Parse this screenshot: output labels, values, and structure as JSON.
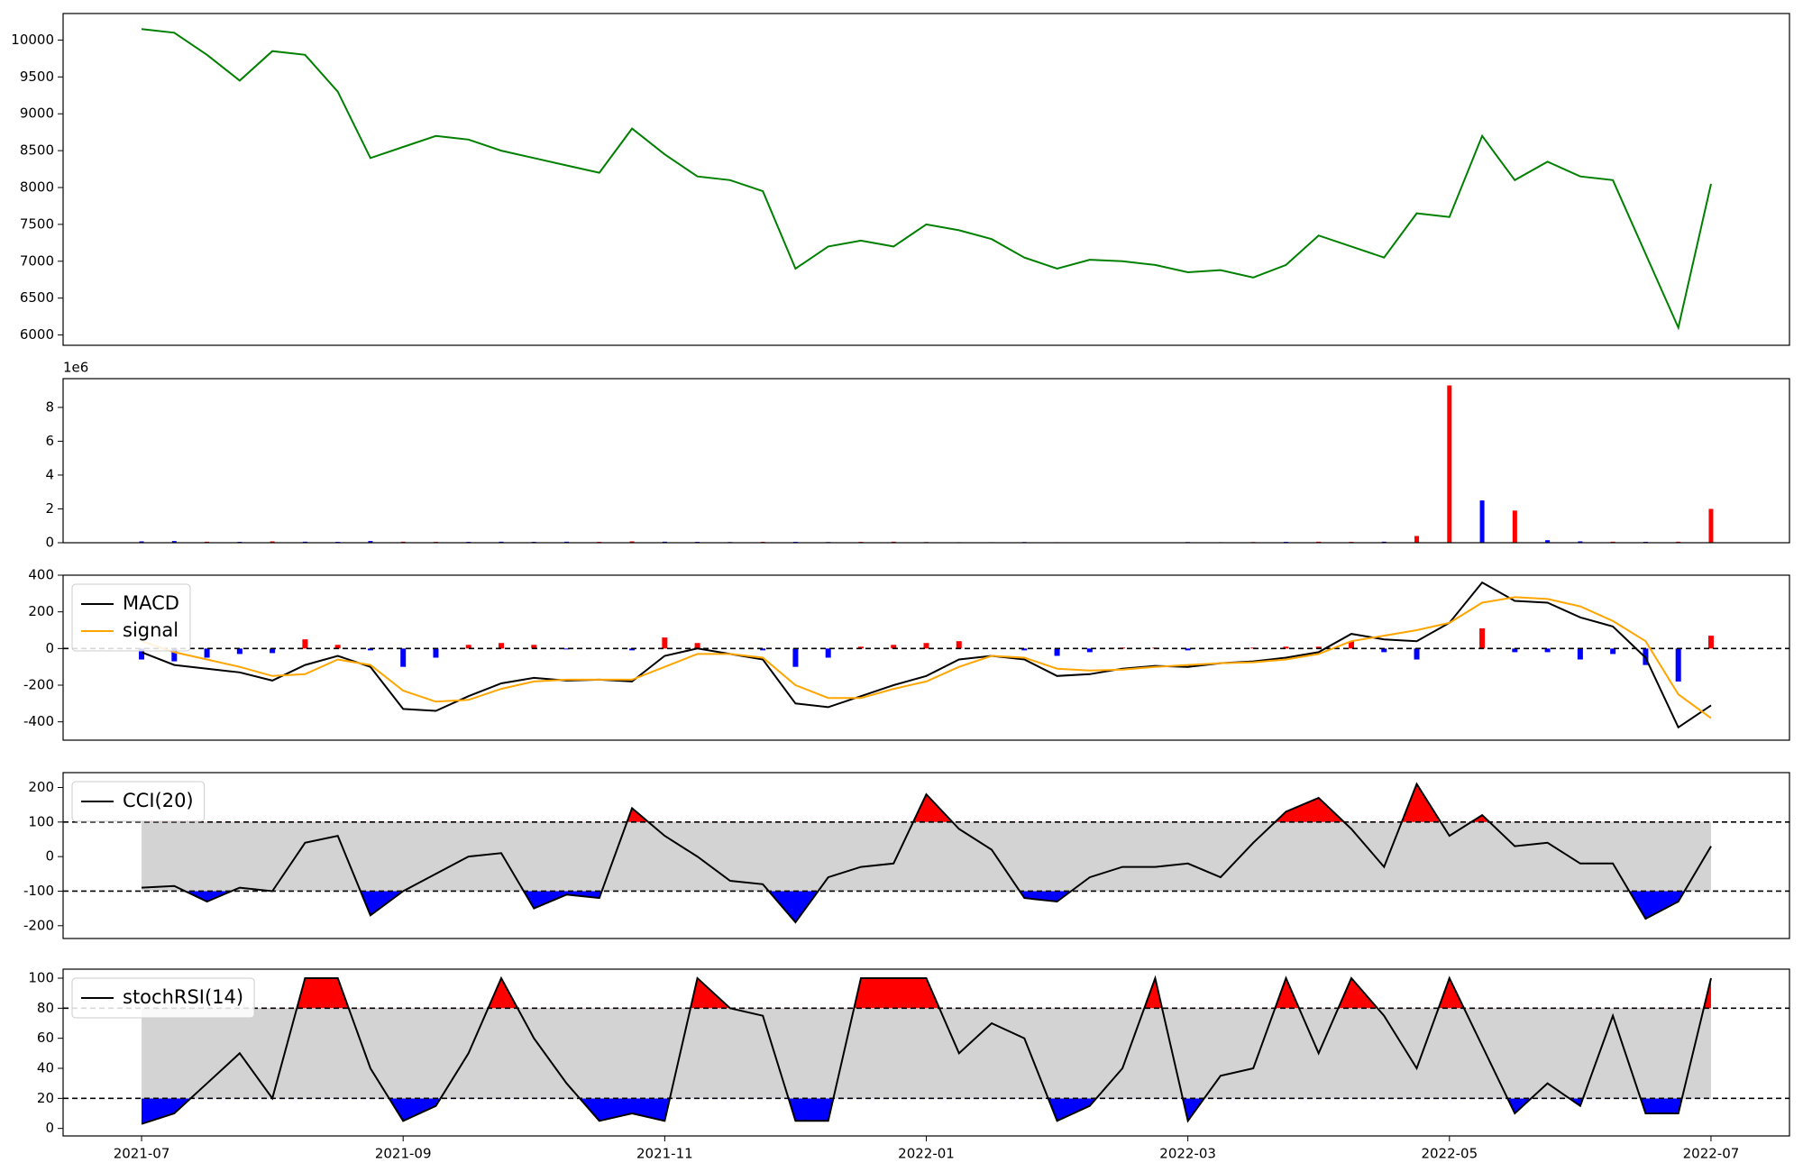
{
  "chart_data": [
    {
      "type": "line",
      "color": "green",
      "x": [
        0,
        0.25,
        0.5,
        0.75,
        1,
        1.25,
        1.5,
        1.75,
        2,
        2.25,
        2.5,
        2.75,
        3,
        3.25,
        3.5,
        3.75,
        4,
        4.25,
        4.5,
        4.75,
        5,
        5.25,
        5.5,
        5.75,
        6,
        6.25,
        6.5,
        6.75,
        7,
        7.25,
        7.5,
        7.75,
        8,
        8.25,
        8.5,
        8.75,
        9,
        9.25,
        9.5,
        9.75,
        10,
        10.25,
        10.5,
        10.75,
        11,
        11.25,
        11.5,
        11.75,
        12
      ],
      "values": [
        10150,
        10100,
        9800,
        9450,
        9850,
        9800,
        9300,
        8400,
        8550,
        8700,
        8650,
        8500,
        8400,
        8300,
        8200,
        8800,
        8450,
        8150,
        8100,
        7950,
        6900,
        7200,
        7280,
        7200,
        7500,
        7420,
        7300,
        7050,
        6900,
        7020,
        7000,
        6950,
        6850,
        6880,
        6780,
        6950,
        7350,
        7200,
        7050,
        7650,
        7600,
        8700,
        8100,
        8350,
        8150,
        8100,
        7100,
        6100,
        8050
      ],
      "xlim": [
        -0.6,
        12.6
      ],
      "ylim": [
        5860,
        10360
      ],
      "yticks": [
        6000,
        6500,
        7000,
        7500,
        8000,
        8500,
        9000,
        9500,
        10000
      ]
    },
    {
      "type": "bar",
      "offset_label": "1e6",
      "x": [
        0,
        0.25,
        0.5,
        0.75,
        1,
        1.25,
        1.5,
        1.75,
        2,
        2.25,
        2.5,
        2.75,
        3,
        3.25,
        3.5,
        3.75,
        4,
        4.25,
        4.5,
        4.75,
        5,
        5.25,
        5.5,
        5.75,
        6,
        6.25,
        6.5,
        6.75,
        7,
        7.25,
        7.5,
        7.75,
        8,
        8.25,
        8.5,
        8.75,
        9,
        9.25,
        9.5,
        9.75,
        10,
        10.25,
        10.5,
        10.75,
        11,
        11.25,
        11.5,
        11.75,
        12
      ],
      "values": [
        0.08,
        0.1,
        0.06,
        0.05,
        0.08,
        0.06,
        0.05,
        0.1,
        0.06,
        0.05,
        0.05,
        0.06,
        0.05,
        0.06,
        0.05,
        0.08,
        0.06,
        0.05,
        0.04,
        0.05,
        0.05,
        0.04,
        0.05,
        0.06,
        0.04,
        0.03,
        0.03,
        0.04,
        0.03,
        0.02,
        0.02,
        0.02,
        0.04,
        0.03,
        0.04,
        0.05,
        0.06,
        0.05,
        0.06,
        0.4,
        9.3,
        2.5,
        1.9,
        0.15,
        0.08,
        0.06,
        0.05,
        0.06,
        2.0
      ],
      "colors": [
        "blue",
        "blue",
        "red",
        "blue",
        "red",
        "blue",
        "blue",
        "blue",
        "red",
        "red",
        "blue",
        "blue",
        "blue",
        "blue",
        "red",
        "red",
        "blue",
        "blue",
        "blue",
        "red",
        "blue",
        "blue",
        "red",
        "red",
        "red",
        "blue",
        "blue",
        "blue",
        "red",
        "blue",
        "red",
        "red",
        "blue",
        "blue",
        "red",
        "blue",
        "red",
        "red",
        "blue",
        "red",
        "red",
        "blue",
        "red",
        "blue",
        "blue",
        "red",
        "blue",
        "red",
        "red"
      ],
      "xlim": [
        -0.6,
        12.6
      ],
      "ylim": [
        0,
        9.7
      ],
      "yticks": [
        0,
        2,
        4,
        6,
        8
      ]
    },
    {
      "type": "macd",
      "legend": "upper left",
      "hlines": [
        0
      ],
      "x": [
        0,
        0.25,
        0.5,
        0.75,
        1,
        1.25,
        1.5,
        1.75,
        2,
        2.25,
        2.5,
        2.75,
        3,
        3.25,
        3.5,
        3.75,
        4,
        4.25,
        4.5,
        4.75,
        5,
        5.25,
        5.5,
        5.75,
        6,
        6.25,
        6.5,
        6.75,
        7,
        7.25,
        7.5,
        7.75,
        8,
        8.25,
        8.5,
        8.75,
        9,
        9.25,
        9.5,
        9.75,
        10,
        10.25,
        10.5,
        10.75,
        11,
        11.25,
        11.5,
        11.75,
        12
      ],
      "series": [
        {
          "name": "MACD",
          "color": "black",
          "values": [
            -20,
            -90,
            -110,
            -130,
            -175,
            -90,
            -40,
            -100,
            -330,
            -340,
            -260,
            -190,
            -160,
            -175,
            -170,
            -180,
            -40,
            0,
            -30,
            -60,
            -300,
            -320,
            -260,
            -200,
            -150,
            -60,
            -40,
            -60,
            -150,
            -140,
            -110,
            -95,
            -100,
            -80,
            -70,
            -50,
            -20,
            80,
            50,
            40,
            140,
            360,
            260,
            250,
            170,
            120,
            -50,
            -430,
            -310
          ]
        },
        {
          "name": "signal",
          "color": "orange",
          "values": [
            40,
            -20,
            -60,
            -100,
            -150,
            -140,
            -60,
            -90,
            -230,
            -290,
            -280,
            -220,
            -180,
            -170,
            -170,
            -170,
            -100,
            -30,
            -30,
            -50,
            -200,
            -270,
            -270,
            -220,
            -180,
            -100,
            -40,
            -50,
            -110,
            -120,
            -115,
            -100,
            -90,
            -80,
            -75,
            -60,
            -30,
            40,
            70,
            100,
            140,
            250,
            280,
            270,
            230,
            150,
            40,
            -250,
            -380
          ]
        }
      ],
      "histogram": {
        "positive_color": "red",
        "negative_color": "blue",
        "values": [
          -60,
          -70,
          -50,
          -30,
          -25,
          50,
          20,
          -10,
          -100,
          -50,
          20,
          30,
          20,
          -5,
          0,
          -10,
          60,
          30,
          0,
          -10,
          -100,
          -50,
          10,
          20,
          30,
          40,
          0,
          -10,
          -40,
          -20,
          5,
          5,
          -10,
          0,
          5,
          10,
          10,
          40,
          -20,
          -60,
          0,
          110,
          -20,
          -20,
          -60,
          -30,
          -90,
          -180,
          70
        ]
      },
      "xlim": [
        -0.6,
        12.6
      ],
      "ylim": [
        -500,
        400
      ],
      "yticks": [
        -400,
        -200,
        0,
        200,
        400
      ]
    },
    {
      "type": "oscillator",
      "legend": "upper left",
      "bands": {
        "upper": 100,
        "lower": -100,
        "upper_color": "red",
        "lower_color": "blue",
        "fill_color": "lightgray"
      },
      "x": [
        0,
        0.25,
        0.5,
        0.75,
        1,
        1.25,
        1.5,
        1.75,
        2,
        2.25,
        2.5,
        2.75,
        3,
        3.25,
        3.5,
        3.75,
        4,
        4.25,
        4.5,
        4.75,
        5,
        5.25,
        5.5,
        5.75,
        6,
        6.25,
        6.5,
        6.75,
        7,
        7.25,
        7.5,
        7.75,
        8,
        8.25,
        8.5,
        8.75,
        9,
        9.25,
        9.5,
        9.75,
        10,
        10.25,
        10.5,
        10.75,
        11,
        11.25,
        11.5,
        11.75,
        12
      ],
      "series": [
        {
          "name": "CCI(20)",
          "color": "black",
          "values": [
            -90,
            -85,
            -130,
            -90,
            -100,
            40,
            60,
            -170,
            -100,
            -50,
            0,
            10,
            -150,
            -110,
            -120,
            140,
            60,
            0,
            -70,
            -80,
            -190,
            -60,
            -30,
            -20,
            180,
            80,
            20,
            -120,
            -130,
            -60,
            -30,
            -30,
            -20,
            -60,
            40,
            130,
            170,
            80,
            -30,
            210,
            60,
            120,
            30,
            40,
            -20,
            -20,
            -180,
            -130,
            30
          ]
        }
      ],
      "xlim": [
        -0.6,
        12.6
      ],
      "ylim": [
        -237,
        243
      ],
      "yticks": [
        -200,
        -100,
        0,
        100,
        200
      ]
    },
    {
      "type": "oscillator",
      "legend": "upper left",
      "bands": {
        "upper": 80,
        "lower": 20,
        "upper_color": "red",
        "lower_color": "blue",
        "fill_color": "lightgray"
      },
      "x": [
        0,
        0.25,
        0.5,
        0.75,
        1,
        1.25,
        1.5,
        1.75,
        2,
        2.25,
        2.5,
        2.75,
        3,
        3.25,
        3.5,
        3.75,
        4,
        4.25,
        4.5,
        4.75,
        5,
        5.25,
        5.5,
        5.75,
        6,
        6.25,
        6.5,
        6.75,
        7,
        7.25,
        7.5,
        7.75,
        8,
        8.25,
        8.5,
        8.75,
        9,
        9.25,
        9.5,
        9.75,
        10,
        10.25,
        10.5,
        10.75,
        11,
        11.25,
        11.5,
        11.75,
        12
      ],
      "series": [
        {
          "name": "stochRSI(14)",
          "color": "black",
          "values": [
            3,
            10,
            30,
            50,
            20,
            100,
            100,
            40,
            5,
            15,
            50,
            100,
            60,
            30,
            5,
            10,
            5,
            100,
            80,
            75,
            5,
            5,
            100,
            100,
            100,
            50,
            70,
            60,
            5,
            15,
            40,
            100,
            5,
            35,
            40,
            100,
            50,
            100,
            75,
            40,
            100,
            55,
            10,
            30,
            15,
            75,
            10,
            10,
            100
          ]
        }
      ],
      "xlim": [
        -0.6,
        12.6
      ],
      "ylim": [
        -5,
        106
      ],
      "yticks": [
        0,
        20,
        40,
        60,
        80,
        100
      ],
      "xticks": [
        {
          "value": 0,
          "label": "2021-07"
        },
        {
          "value": 2,
          "label": "2021-09"
        },
        {
          "value": 4,
          "label": "2021-11"
        },
        {
          "value": 6,
          "label": "2022-01"
        },
        {
          "value": 8,
          "label": "2022-03"
        },
        {
          "value": 10,
          "label": "2022-05"
        },
        {
          "value": 12,
          "label": "2022-07"
        }
      ]
    }
  ]
}
